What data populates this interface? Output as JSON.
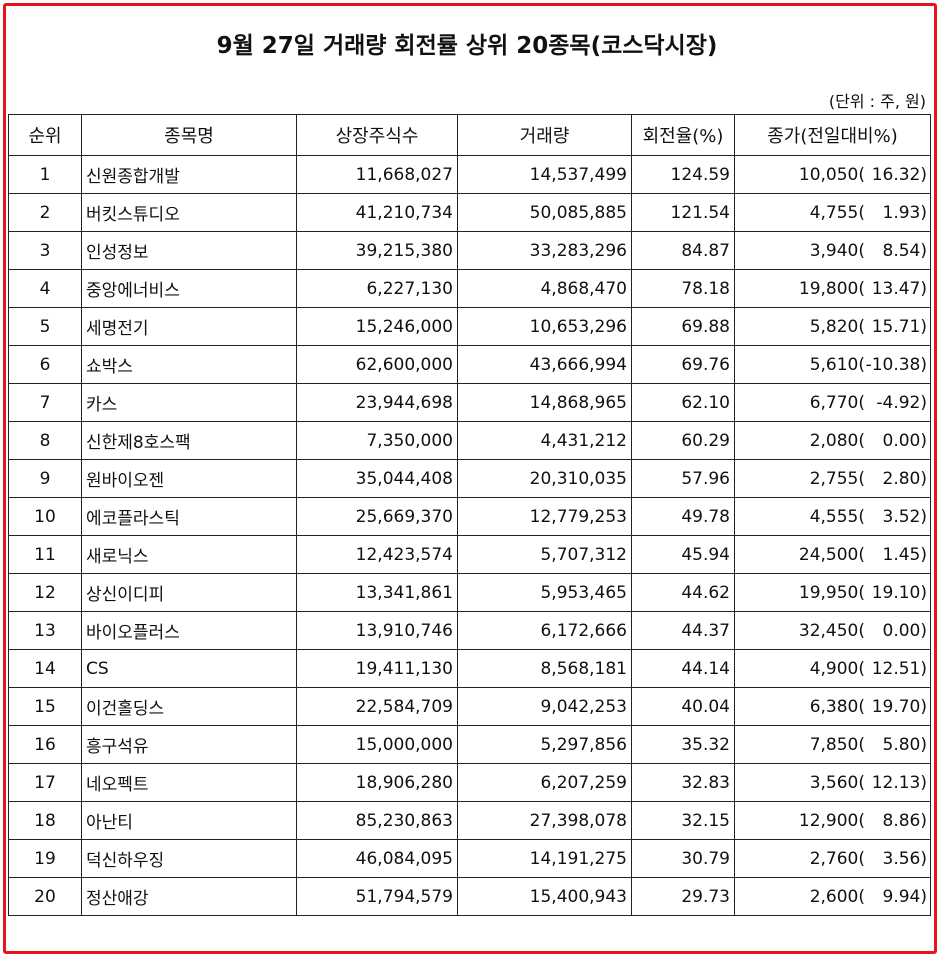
{
  "title": "9월 27일 거래량 회전률 상위 20종목(코스닥시장)",
  "unit_note": "(단위 : 주, 원)",
  "colors": {
    "border": "#e8141b"
  },
  "headers": [
    "순위",
    "종목명",
    "상장주식수",
    "거래량",
    "회전율(%)",
    "종가(전일대비%)"
  ],
  "rows": [
    {
      "rank": "1",
      "name": "신원종합개발",
      "shares": "11,668,027",
      "volume": "14,537,499",
      "turnover": "124.59",
      "close": "10,050(",
      "change": "16.32)"
    },
    {
      "rank": "2",
      "name": "버킷스튜디오",
      "shares": "41,210,734",
      "volume": "50,085,885",
      "turnover": "121.54",
      "close": "4,755(",
      "change": "1.93)"
    },
    {
      "rank": "3",
      "name": "인성정보",
      "shares": "39,215,380",
      "volume": "33,283,296",
      "turnover": "84.87",
      "close": "3,940(",
      "change": "8.54)"
    },
    {
      "rank": "4",
      "name": "중앙에너비스",
      "shares": "6,227,130",
      "volume": "4,868,470",
      "turnover": "78.18",
      "close": "19,800(",
      "change": "13.47)"
    },
    {
      "rank": "5",
      "name": "세명전기",
      "shares": "15,246,000",
      "volume": "10,653,296",
      "turnover": "69.88",
      "close": "5,820(",
      "change": "15.71)"
    },
    {
      "rank": "6",
      "name": "쇼박스",
      "shares": "62,600,000",
      "volume": "43,666,994",
      "turnover": "69.76",
      "close": "5,610(",
      "change": "-10.38)"
    },
    {
      "rank": "7",
      "name": "카스",
      "shares": "23,944,698",
      "volume": "14,868,965",
      "turnover": "62.10",
      "close": "6,770(",
      "change": "-4.92)"
    },
    {
      "rank": "8",
      "name": "신한제8호스팩",
      "shares": "7,350,000",
      "volume": "4,431,212",
      "turnover": "60.29",
      "close": "2,080(",
      "change": "0.00)"
    },
    {
      "rank": "9",
      "name": "원바이오젠",
      "shares": "35,044,408",
      "volume": "20,310,035",
      "turnover": "57.96",
      "close": "2,755(",
      "change": "2.80)"
    },
    {
      "rank": "10",
      "name": "에코플라스틱",
      "shares": "25,669,370",
      "volume": "12,779,253",
      "turnover": "49.78",
      "close": "4,555(",
      "change": "3.52)"
    },
    {
      "rank": "11",
      "name": "새로닉스",
      "shares": "12,423,574",
      "volume": "5,707,312",
      "turnover": "45.94",
      "close": "24,500(",
      "change": "1.45)"
    },
    {
      "rank": "12",
      "name": "상신이디피",
      "shares": "13,341,861",
      "volume": "5,953,465",
      "turnover": "44.62",
      "close": "19,950(",
      "change": "19.10)"
    },
    {
      "rank": "13",
      "name": "바이오플러스",
      "shares": "13,910,746",
      "volume": "6,172,666",
      "turnover": "44.37",
      "close": "32,450(",
      "change": "0.00)"
    },
    {
      "rank": "14",
      "name": "CS",
      "shares": "19,411,130",
      "volume": "8,568,181",
      "turnover": "44.14",
      "close": "4,900(",
      "change": "12.51)"
    },
    {
      "rank": "15",
      "name": "이건홀딩스",
      "shares": "22,584,709",
      "volume": "9,042,253",
      "turnover": "40.04",
      "close": "6,380(",
      "change": "19.70)"
    },
    {
      "rank": "16",
      "name": "흥구석유",
      "shares": "15,000,000",
      "volume": "5,297,856",
      "turnover": "35.32",
      "close": "7,850(",
      "change": "5.80)"
    },
    {
      "rank": "17",
      "name": "네오펙트",
      "shares": "18,906,280",
      "volume": "6,207,259",
      "turnover": "32.83",
      "close": "3,560(",
      "change": "12.13)"
    },
    {
      "rank": "18",
      "name": "아난티",
      "shares": "85,230,863",
      "volume": "27,398,078",
      "turnover": "32.15",
      "close": "12,900(",
      "change": "8.86)"
    },
    {
      "rank": "19",
      "name": "덕신하우징",
      "shares": "46,084,095",
      "volume": "14,191,275",
      "turnover": "30.79",
      "close": "2,760(",
      "change": "3.56)"
    },
    {
      "rank": "20",
      "name": "정산애강",
      "shares": "51,794,579",
      "volume": "15,400,943",
      "turnover": "29.73",
      "close": "2,600(",
      "change": "9.94)"
    }
  ]
}
